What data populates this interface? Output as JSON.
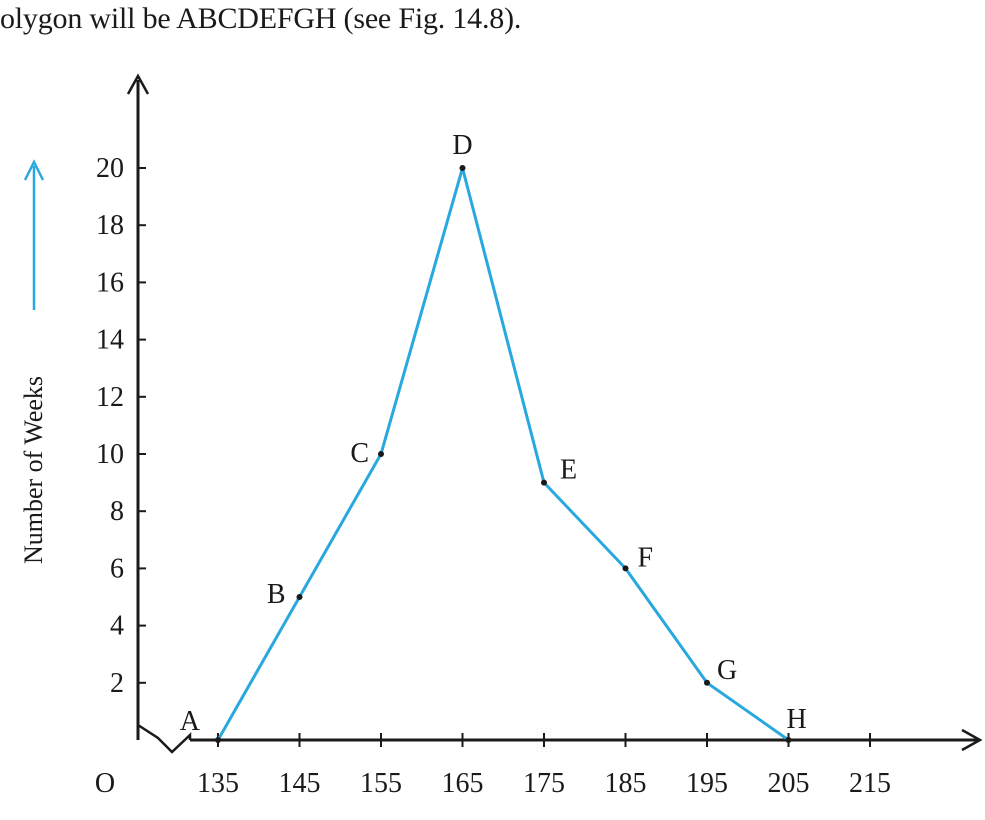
{
  "caption": "olygon will be ABCDEFGH (see Fig. 14.8).",
  "chart_data": {
    "type": "line",
    "title": "",
    "xlabel": "",
    "ylabel": "Number of Weeks",
    "origin_label": "O",
    "x_ticks": [
      135,
      145,
      155,
      165,
      175,
      185,
      195,
      205,
      215
    ],
    "y_ticks": [
      2,
      4,
      6,
      8,
      10,
      12,
      14,
      16,
      18,
      20
    ],
    "xlim": [
      125,
      225
    ],
    "ylim": [
      0,
      21
    ],
    "axis_break": true,
    "grid": false,
    "series": [
      {
        "points": [
          {
            "label": "A",
            "x": 135,
            "y": 0
          },
          {
            "label": "B",
            "x": 145,
            "y": 5
          },
          {
            "label": "C",
            "x": 155,
            "y": 10
          },
          {
            "label": "D",
            "x": 165,
            "y": 20
          },
          {
            "label": "E",
            "x": 175,
            "y": 9
          },
          {
            "label": "F",
            "x": 185,
            "y": 6
          },
          {
            "label": "G",
            "x": 195,
            "y": 2
          },
          {
            "label": "H",
            "x": 205,
            "y": 0
          }
        ]
      }
    ],
    "colors": {
      "line": "#29a8e0",
      "axis": "#1a1a1a",
      "arrow": "#29a8e0"
    }
  }
}
